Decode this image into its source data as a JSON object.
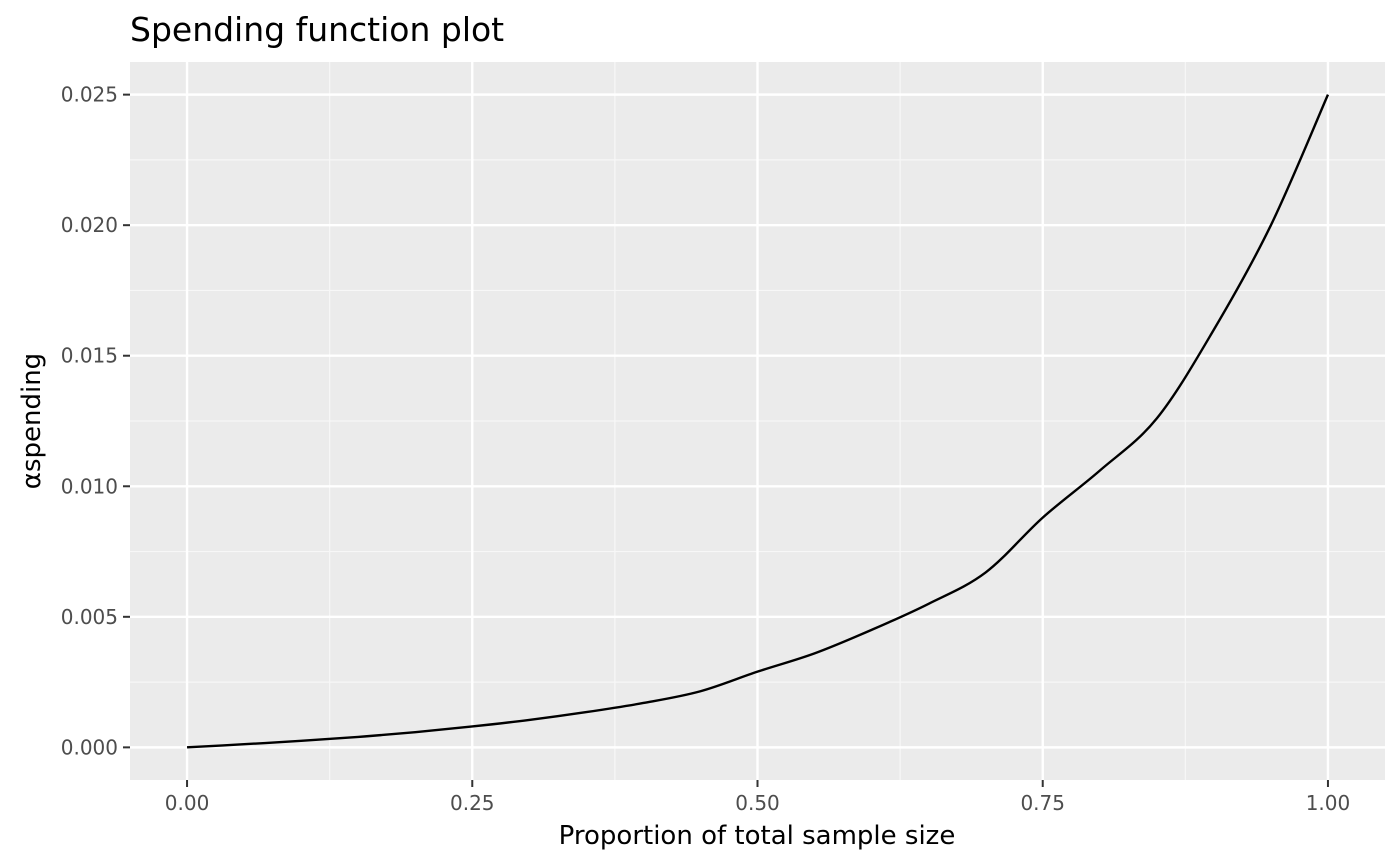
{
  "chart_data": {
    "type": "line",
    "title": "Spending function plot",
    "xlabel": "Proportion of total sample size",
    "ylabel": "αspending",
    "xlim": [
      -0.05,
      1.05
    ],
    "ylim": [
      -0.00125,
      0.02625
    ],
    "x_ticks": [
      0.0,
      0.25,
      0.5,
      0.75,
      1.0
    ],
    "x_tick_labels": [
      "0.00",
      "0.25",
      "0.50",
      "0.75",
      "1.00"
    ],
    "y_ticks": [
      0.0,
      0.005,
      0.01,
      0.015,
      0.02,
      0.025
    ],
    "y_tick_labels": [
      "0.000",
      "0.005",
      "0.010",
      "0.015",
      "0.020",
      "0.025"
    ],
    "grid": true,
    "legend": "none",
    "series": [
      {
        "x": [
          0.0,
          0.05,
          0.1,
          0.15,
          0.2,
          0.25,
          0.3,
          0.35,
          0.4,
          0.45,
          0.5,
          0.55,
          0.6,
          0.65,
          0.7,
          0.75,
          0.8,
          0.85,
          0.9,
          0.95,
          1.0
        ],
        "y": [
          0.0,
          0.00012,
          0.00025,
          0.0004,
          0.00058,
          0.0008,
          0.00105,
          0.00135,
          0.0017,
          0.00215,
          0.0029,
          0.0036,
          0.0045,
          0.0055,
          0.0067,
          0.0088,
          0.0106,
          0.0126,
          0.016,
          0.02,
          0.025
        ],
        "color": "#000000"
      }
    ],
    "colors": {
      "panel_background": "#ebebeb",
      "grid_major": "#ffffff",
      "grid_minor": "#f7f7f7",
      "tick_text": "#4d4d4d",
      "tick_mark": "#333333"
    }
  }
}
